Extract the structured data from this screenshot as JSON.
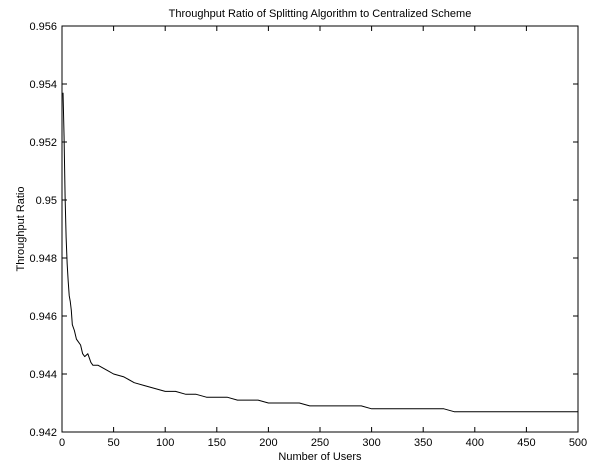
{
  "chart_data": {
    "type": "line",
    "title": "Throughput Ratio of Splitting Algorithm to Centralized Scheme",
    "xlabel": "Number of Users",
    "ylabel": "Throughput Ratio",
    "xlim": [
      0,
      500
    ],
    "ylim": [
      0.942,
      0.956
    ],
    "xticks": [
      0,
      50,
      100,
      150,
      200,
      250,
      300,
      350,
      400,
      450,
      500
    ],
    "xtick_labels": [
      "0",
      "50",
      "100",
      "150",
      "200",
      "250",
      "300",
      "350",
      "400",
      "450",
      "500"
    ],
    "yticks": [
      0.942,
      0.944,
      0.946,
      0.948,
      0.95,
      0.952,
      0.954,
      0.956
    ],
    "ytick_labels": [
      "0.942",
      "0.944",
      "0.946",
      "0.948",
      "0.95",
      "0.952",
      "0.954",
      "0.956"
    ],
    "grid": false,
    "legend": "none",
    "series": [
      {
        "color": "#000000",
        "x": [
          1,
          2,
          3,
          4,
          5,
          6,
          7,
          8,
          9,
          10,
          12,
          14,
          16,
          18,
          20,
          22,
          25,
          28,
          30,
          35,
          40,
          45,
          50,
          60,
          70,
          80,
          90,
          100,
          110,
          120,
          130,
          140,
          150,
          160,
          170,
          180,
          190,
          200,
          210,
          220,
          230,
          240,
          250,
          260,
          270,
          280,
          290,
          300,
          310,
          320,
          330,
          340,
          350,
          360,
          370,
          380,
          390,
          400,
          410,
          420,
          430,
          440,
          450,
          460,
          470,
          480,
          490,
          500
        ],
        "y": [
          0.9537,
          0.9522,
          0.9501,
          0.9487,
          0.9478,
          0.9472,
          0.9467,
          0.9465,
          0.9462,
          0.9457,
          0.9455,
          0.9452,
          0.9451,
          0.945,
          0.9447,
          0.9446,
          0.9447,
          0.9444,
          0.9443,
          0.9443,
          0.9442,
          0.9441,
          0.944,
          0.9439,
          0.9437,
          0.9436,
          0.9435,
          0.9434,
          0.9434,
          0.9433,
          0.9433,
          0.9432,
          0.9432,
          0.9432,
          0.9431,
          0.9431,
          0.9431,
          0.943,
          0.943,
          0.943,
          0.943,
          0.9429,
          0.9429,
          0.9429,
          0.9429,
          0.9429,
          0.9429,
          0.9428,
          0.9428,
          0.9428,
          0.9428,
          0.9428,
          0.9428,
          0.9428,
          0.9428,
          0.9427,
          0.9427,
          0.9427,
          0.9427,
          0.9427,
          0.9427,
          0.9427,
          0.9427,
          0.9427,
          0.9427,
          0.9427,
          0.9427,
          0.9427
        ]
      }
    ]
  }
}
